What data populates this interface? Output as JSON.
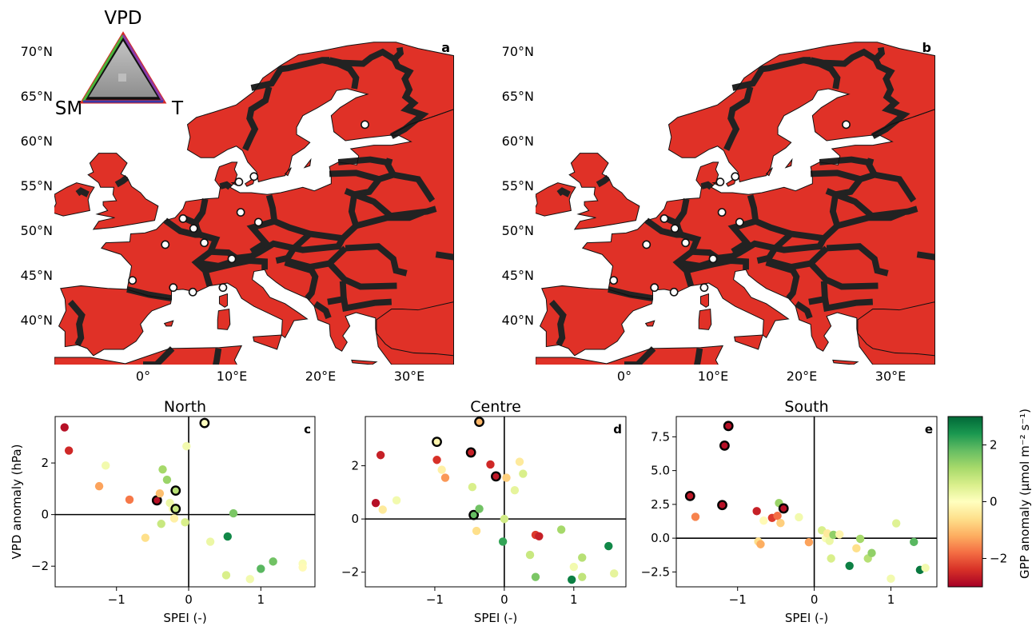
{
  "maps": [
    {
      "panel_label": "a",
      "lat_ticks": [
        "70°N",
        "65°N",
        "60°N",
        "55°N",
        "50°N",
        "45°N",
        "40°N"
      ],
      "lon_ticks": [
        "0°",
        "10°E",
        "20°E",
        "30°E"
      ],
      "triangle_legend": {
        "top": "VPD",
        "left": "SM",
        "right": "T"
      },
      "dominant_colors": {
        "green": "#5cbf46",
        "red": "#e03127",
        "white": "#ffffff"
      }
    },
    {
      "panel_label": "b",
      "lat_ticks": [
        "70°N",
        "65°N",
        "60°N",
        "55°N",
        "50°N",
        "45°N",
        "40°N"
      ],
      "lon_ticks": [
        "0°",
        "10°E",
        "20°E",
        "30°E"
      ],
      "dominant_colors": {
        "green": "#5cbf46",
        "red": "#e03127",
        "white": "#ffffff"
      }
    }
  ],
  "site_markers": [
    [
      25.0,
      61.8
    ],
    [
      12.5,
      56.0
    ],
    [
      10.8,
      55.4
    ],
    [
      11.0,
      52.0
    ],
    [
      13.0,
      50.9
    ],
    [
      4.5,
      51.3
    ],
    [
      5.7,
      50.2
    ],
    [
      2.5,
      48.4
    ],
    [
      6.9,
      48.6
    ],
    [
      10.0,
      46.8
    ],
    [
      -1.2,
      44.4
    ],
    [
      3.4,
      43.6
    ],
    [
      5.6,
      43.1
    ],
    [
      9.0,
      43.6
    ]
  ],
  "chart_data": [
    {
      "type": "scatter",
      "title": "North",
      "panel_label": "c",
      "xlabel": "SPEI (-)",
      "ylabel": "VPD anomaly (hPa)",
      "xlim": [
        -1.85,
        1.75
      ],
      "ylim": [
        -2.8,
        3.8
      ],
      "xticks": [
        -1,
        0,
        1
      ],
      "xtick_labels": [
        "−1",
        "0",
        "1"
      ],
      "yticks": [
        -2,
        0,
        2
      ],
      "ytick_labels": [
        "−2",
        "0",
        "2"
      ],
      "zero_lines": true,
      "points": [
        {
          "x": -1.72,
          "y": 3.38,
          "c": -2.8,
          "o": false
        },
        {
          "x": -1.66,
          "y": 2.48,
          "c": -2.5,
          "o": false
        },
        {
          "x": -1.24,
          "y": 1.1,
          "c": -1.3,
          "o": false
        },
        {
          "x": -1.15,
          "y": 1.9,
          "c": 0.2,
          "o": false
        },
        {
          "x": -0.82,
          "y": 0.58,
          "c": -1.7,
          "o": false
        },
        {
          "x": -0.6,
          "y": -0.9,
          "c": -0.6,
          "o": false
        },
        {
          "x": -0.44,
          "y": 0.55,
          "c": -2.8,
          "o": true
        },
        {
          "x": -0.4,
          "y": 0.82,
          "c": -1.0,
          "o": false
        },
        {
          "x": -0.38,
          "y": -0.36,
          "c": 0.8,
          "o": false
        },
        {
          "x": -0.36,
          "y": 1.75,
          "c": 1.2,
          "o": false
        },
        {
          "x": -0.3,
          "y": 1.35,
          "c": 1.3,
          "o": false
        },
        {
          "x": -0.26,
          "y": 0.45,
          "c": 0.3,
          "o": false
        },
        {
          "x": -0.22,
          "y": 0.22,
          "c": 0.1,
          "o": false
        },
        {
          "x": -0.2,
          "y": -0.15,
          "c": -0.3,
          "o": false
        },
        {
          "x": -0.18,
          "y": 0.93,
          "c": 1.0,
          "o": true
        },
        {
          "x": -0.18,
          "y": 0.22,
          "c": 0.8,
          "o": true
        },
        {
          "x": -0.05,
          "y": -0.3,
          "c": 0.6,
          "o": false
        },
        {
          "x": -0.03,
          "y": 2.65,
          "c": 0.2,
          "o": false
        },
        {
          "x": 0.22,
          "y": 3.55,
          "c": 0.0,
          "o": true
        },
        {
          "x": 0.3,
          "y": -1.05,
          "c": 0.3,
          "o": false
        },
        {
          "x": 0.52,
          "y": -2.35,
          "c": 0.6,
          "o": false
        },
        {
          "x": 0.54,
          "y": -0.85,
          "c": 2.6,
          "o": false
        },
        {
          "x": 0.62,
          "y": 0.05,
          "c": 1.6,
          "o": false
        },
        {
          "x": 1.0,
          "y": -2.1,
          "c": 1.9,
          "o": false
        },
        {
          "x": 1.17,
          "y": -1.82,
          "c": 1.7,
          "o": false
        },
        {
          "x": 0.85,
          "y": -2.5,
          "c": 0.2,
          "o": false
        },
        {
          "x": 1.58,
          "y": -1.9,
          "c": 0.1,
          "o": false
        },
        {
          "x": 1.58,
          "y": -2.05,
          "c": -0.1,
          "o": false
        }
      ]
    },
    {
      "type": "scatter",
      "title": "Centre",
      "panel_label": "d",
      "xlabel": "SPEI (-)",
      "ylabel": "",
      "xlim": [
        -2.0,
        1.75
      ],
      "ylim": [
        -2.55,
        3.85
      ],
      "xticks": [
        -1,
        0,
        1
      ],
      "xtick_labels": [
        "−1",
        "0",
        "1"
      ],
      "yticks": [
        -2,
        0,
        2
      ],
      "ytick_labels": [
        "−2",
        "0",
        "2"
      ],
      "zero_lines": true,
      "points": [
        {
          "x": -1.85,
          "y": 0.6,
          "c": -2.8,
          "o": false
        },
        {
          "x": -1.78,
          "y": 2.4,
          "c": -2.6,
          "o": false
        },
        {
          "x": -1.75,
          "y": 0.35,
          "c": -0.4,
          "o": false
        },
        {
          "x": -1.55,
          "y": 0.7,
          "c": 0.2,
          "o": false
        },
        {
          "x": -0.97,
          "y": 2.9,
          "c": -0.2,
          "o": true
        },
        {
          "x": -0.97,
          "y": 2.22,
          "c": -2.4,
          "o": false
        },
        {
          "x": -0.9,
          "y": 1.85,
          "c": -0.3,
          "o": false
        },
        {
          "x": -0.85,
          "y": 1.55,
          "c": -1.4,
          "o": false
        },
        {
          "x": -0.48,
          "y": 2.5,
          "c": -2.6,
          "o": true
        },
        {
          "x": -0.46,
          "y": 1.2,
          "c": 0.6,
          "o": false
        },
        {
          "x": -0.44,
          "y": 0.15,
          "c": 1.8,
          "o": true
        },
        {
          "x": -0.4,
          "y": -0.45,
          "c": -0.6,
          "o": false
        },
        {
          "x": -0.36,
          "y": 3.65,
          "c": -1.1,
          "o": true
        },
        {
          "x": -0.36,
          "y": 0.38,
          "c": 1.7,
          "o": false
        },
        {
          "x": -0.2,
          "y": 2.05,
          "c": -2.5,
          "o": false
        },
        {
          "x": -0.12,
          "y": 1.6,
          "c": -2.7,
          "o": true
        },
        {
          "x": -0.02,
          "y": -0.85,
          "c": 2.2,
          "o": false
        },
        {
          "x": 0.0,
          "y": 0.0,
          "c": 0.7,
          "o": false
        },
        {
          "x": 0.03,
          "y": 1.55,
          "c": -0.8,
          "o": false
        },
        {
          "x": 0.15,
          "y": 1.08,
          "c": 0.4,
          "o": false
        },
        {
          "x": 0.22,
          "y": 2.15,
          "c": -0.4,
          "o": false
        },
        {
          "x": 0.27,
          "y": 1.7,
          "c": 0.6,
          "o": false
        },
        {
          "x": 0.37,
          "y": -1.35,
          "c": 0.8,
          "o": false
        },
        {
          "x": 0.45,
          "y": -0.6,
          "c": -2.3,
          "o": false
        },
        {
          "x": 0.5,
          "y": -0.65,
          "c": -2.6,
          "o": false
        },
        {
          "x": 0.45,
          "y": -2.18,
          "c": 1.6,
          "o": false
        },
        {
          "x": 0.82,
          "y": -0.4,
          "c": 1.2,
          "o": false
        },
        {
          "x": 0.97,
          "y": -2.28,
          "c": 2.7,
          "o": false
        },
        {
          "x": 1.0,
          "y": -1.8,
          "c": 0.2,
          "o": false
        },
        {
          "x": 1.12,
          "y": -1.45,
          "c": 1.0,
          "o": false
        },
        {
          "x": 1.12,
          "y": -2.18,
          "c": 0.9,
          "o": false
        },
        {
          "x": 1.5,
          "y": -1.02,
          "c": 2.6,
          "o": false
        },
        {
          "x": 1.58,
          "y": -2.05,
          "c": 0.4,
          "o": false
        }
      ]
    },
    {
      "type": "scatter",
      "title": "South",
      "panel_label": "e",
      "xlabel": "SPEI (-)",
      "ylabel": "",
      "xlim": [
        -1.8,
        1.6
      ],
      "ylim": [
        -3.6,
        9.0
      ],
      "xticks": [
        -1,
        0,
        1
      ],
      "xtick_labels": [
        "−1",
        "0",
        "1"
      ],
      "yticks": [
        -2.5,
        0.0,
        2.5,
        5.0,
        7.5
      ],
      "ytick_labels": [
        "−2.5",
        "0.0",
        "2.5",
        "5.0",
        "7.5"
      ],
      "zero_lines": true,
      "points": [
        {
          "x": -1.62,
          "y": 3.12,
          "c": -2.7,
          "o": true
        },
        {
          "x": -1.55,
          "y": 1.58,
          "c": -1.6,
          "o": false
        },
        {
          "x": -1.2,
          "y": 2.45,
          "c": -2.8,
          "o": true
        },
        {
          "x": -1.17,
          "y": 6.85,
          "c": -2.8,
          "o": true
        },
        {
          "x": -1.12,
          "y": 8.3,
          "c": -2.8,
          "o": true
        },
        {
          "x": -0.75,
          "y": 2.0,
          "c": -2.6,
          "o": false
        },
        {
          "x": -0.73,
          "y": -0.25,
          "c": -0.6,
          "o": false
        },
        {
          "x": -0.7,
          "y": -0.45,
          "c": -1.2,
          "o": false
        },
        {
          "x": -0.66,
          "y": 1.3,
          "c": -0.1,
          "o": false
        },
        {
          "x": -0.55,
          "y": 1.5,
          "c": -2.3,
          "o": false
        },
        {
          "x": -0.48,
          "y": 1.65,
          "c": -1.8,
          "o": false
        },
        {
          "x": -0.46,
          "y": 2.6,
          "c": 1.3,
          "o": false
        },
        {
          "x": -0.44,
          "y": 1.12,
          "c": -0.8,
          "o": false
        },
        {
          "x": -0.4,
          "y": 2.2,
          "c": -2.8,
          "o": true
        },
        {
          "x": -0.2,
          "y": 1.55,
          "c": 0.2,
          "o": false
        },
        {
          "x": -0.07,
          "y": -0.3,
          "c": -1.3,
          "o": false
        },
        {
          "x": 0.1,
          "y": 0.58,
          "c": 0.6,
          "o": false
        },
        {
          "x": 0.15,
          "y": 0.0,
          "c": 0.1,
          "o": false
        },
        {
          "x": 0.17,
          "y": 0.35,
          "c": -0.4,
          "o": false
        },
        {
          "x": 0.2,
          "y": -0.2,
          "c": 0.3,
          "o": false
        },
        {
          "x": 0.22,
          "y": -1.5,
          "c": 0.6,
          "o": false
        },
        {
          "x": 0.25,
          "y": 0.25,
          "c": 1.4,
          "o": false
        },
        {
          "x": 0.33,
          "y": 0.28,
          "c": -0.2,
          "o": false
        },
        {
          "x": 0.46,
          "y": -2.05,
          "c": 2.7,
          "o": false
        },
        {
          "x": 0.55,
          "y": -0.75,
          "c": -0.6,
          "o": false
        },
        {
          "x": 0.6,
          "y": -0.05,
          "c": 1.2,
          "o": false
        },
        {
          "x": 0.7,
          "y": -1.5,
          "c": 1.0,
          "o": false
        },
        {
          "x": 0.75,
          "y": -1.1,
          "c": 1.4,
          "o": false
        },
        {
          "x": 1.0,
          "y": -3.0,
          "c": 0.2,
          "o": false
        },
        {
          "x": 1.07,
          "y": 1.1,
          "c": 0.5,
          "o": false
        },
        {
          "x": 1.3,
          "y": -0.28,
          "c": 1.9,
          "o": false
        },
        {
          "x": 1.38,
          "y": -2.35,
          "c": 2.8,
          "o": false
        },
        {
          "x": 1.45,
          "y": -2.2,
          "c": 0.2,
          "o": false
        }
      ]
    }
  ],
  "colorbar": {
    "label": "GPP anomaly (μmol m⁻² s⁻¹)",
    "ticks": [
      2,
      0,
      -2
    ],
    "tick_labels": [
      "2",
      "0",
      "−2"
    ],
    "range": [
      -3,
      3
    ],
    "colormap": "RdYlGn"
  }
}
